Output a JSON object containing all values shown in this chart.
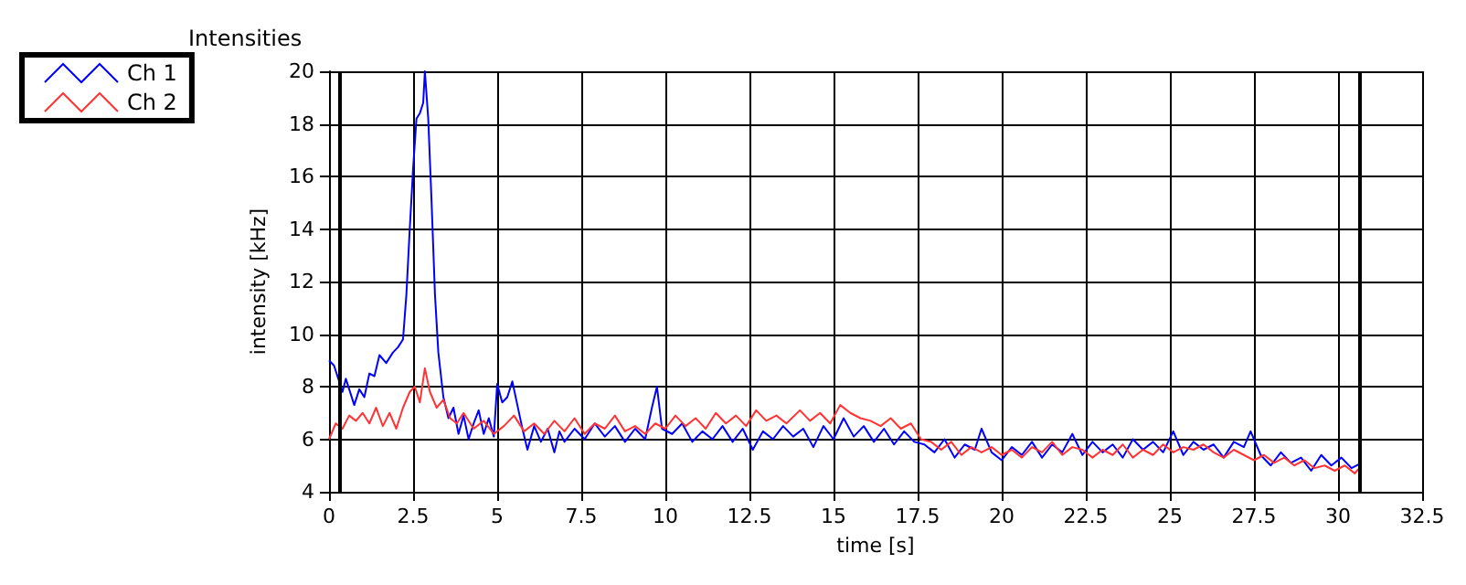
{
  "chart_data": {
    "type": "line",
    "title": "Intensities",
    "xlabel": "time [s]",
    "ylabel": "intensity [kHz]",
    "xlim": [
      0,
      32.5
    ],
    "xticks": [
      0,
      2.5,
      5,
      7.5,
      10,
      12.5,
      15,
      17.5,
      20,
      22.5,
      25,
      27.5,
      30,
      32.5
    ],
    "ylim": [
      4,
      20
    ],
    "yticks": [
      4,
      6,
      8,
      10,
      12,
      14,
      16,
      18,
      20
    ],
    "grid": true,
    "legend": "top left",
    "marker": "none",
    "line_style": "solid",
    "ref_lines": [
      {
        "axis": "x",
        "value": 0.3,
        "color": "#000000"
      },
      {
        "axis": "x",
        "value": 30.65,
        "color": "#000000"
      }
    ],
    "series": [
      {
        "name": "Ch 1",
        "color": "#0000ff",
        "x": [
          0,
          0.15,
          0.3,
          0.4,
          0.5,
          0.6,
          0.75,
          0.9,
          1.05,
          1.2,
          1.35,
          1.5,
          1.7,
          1.9,
          2.05,
          2.2,
          2.3,
          2.4,
          2.5,
          2.6,
          2.7,
          2.8,
          2.85,
          2.95,
          3.05,
          3.15,
          3.25,
          3.4,
          3.55,
          3.7,
          3.85,
          4.0,
          4.15,
          4.3,
          4.45,
          4.6,
          4.75,
          4.9,
          5.0,
          5.15,
          5.3,
          5.45,
          5.6,
          5.75,
          5.9,
          6.1,
          6.3,
          6.5,
          6.7,
          6.85,
          7.0,
          7.3,
          7.6,
          7.9,
          8.2,
          8.5,
          8.8,
          9.1,
          9.4,
          9.6,
          9.75,
          9.9,
          10.2,
          10.5,
          10.8,
          11.1,
          11.4,
          11.7,
          12.0,
          12.3,
          12.6,
          12.9,
          13.2,
          13.5,
          13.8,
          14.1,
          14.4,
          14.7,
          15.0,
          15.3,
          15.6,
          15.9,
          16.2,
          16.5,
          16.8,
          17.1,
          17.4,
          17.7,
          18.0,
          18.3,
          18.6,
          18.9,
          19.2,
          19.4,
          19.7,
          20.0,
          20.3,
          20.6,
          20.9,
          21.2,
          21.5,
          21.8,
          22.1,
          22.4,
          22.7,
          23.0,
          23.3,
          23.6,
          23.9,
          24.2,
          24.5,
          24.8,
          25.1,
          25.4,
          25.7,
          26.0,
          26.3,
          26.6,
          26.9,
          27.2,
          27.4,
          27.7,
          28.0,
          28.3,
          28.6,
          28.9,
          29.2,
          29.5,
          29.8,
          30.1,
          30.4,
          30.7
        ],
        "values": [
          9.0,
          8.8,
          8.2,
          7.8,
          8.3,
          7.9,
          7.3,
          7.9,
          7.6,
          8.5,
          8.4,
          9.2,
          8.9,
          9.3,
          9.5,
          9.8,
          11.5,
          14,
          16.3,
          18.2,
          18.4,
          18.8,
          20,
          18.2,
          15,
          11.5,
          9.3,
          7.6,
          6.8,
          7.2,
          6.2,
          6.9,
          6.0,
          6.6,
          7.1,
          6.2,
          6.8,
          6.1,
          8.1,
          7.4,
          7.6,
          8.2,
          7.3,
          6.4,
          5.6,
          6.5,
          5.9,
          6.4,
          5.5,
          6.3,
          5.9,
          6.4,
          6.0,
          6.6,
          6.1,
          6.5,
          5.9,
          6.4,
          6.0,
          7.2,
          8.0,
          6.4,
          6.2,
          6.6,
          5.9,
          6.3,
          6.0,
          6.5,
          5.9,
          6.4,
          5.6,
          6.3,
          6.0,
          6.5,
          6.1,
          6.4,
          5.7,
          6.5,
          6.0,
          6.8,
          6.1,
          6.5,
          5.9,
          6.4,
          5.8,
          6.3,
          5.9,
          5.8,
          5.5,
          6.0,
          5.3,
          5.8,
          5.6,
          6.4,
          5.5,
          5.2,
          5.7,
          5.4,
          5.9,
          5.3,
          5.8,
          5.5,
          6.2,
          5.4,
          5.9,
          5.5,
          5.8,
          5.3,
          6.0,
          5.6,
          5.9,
          5.5,
          6.3,
          5.4,
          5.9,
          5.6,
          5.8,
          5.3,
          5.9,
          5.7,
          6.3,
          5.4,
          5.0,
          5.5,
          5.1,
          5.3,
          4.8,
          5.4,
          5.0,
          5.3,
          4.9,
          5.1
        ]
      },
      {
        "name": "Ch 2",
        "color": "#ff3333",
        "x": [
          0,
          0.2,
          0.4,
          0.6,
          0.8,
          1.0,
          1.2,
          1.4,
          1.6,
          1.8,
          2.0,
          2.2,
          2.4,
          2.55,
          2.7,
          2.85,
          3.0,
          3.2,
          3.4,
          3.6,
          3.8,
          4.0,
          4.3,
          4.6,
          4.9,
          5.2,
          5.5,
          5.8,
          6.1,
          6.4,
          6.7,
          7.0,
          7.3,
          7.6,
          7.9,
          8.2,
          8.5,
          8.8,
          9.1,
          9.4,
          9.7,
          10.0,
          10.3,
          10.6,
          10.9,
          11.2,
          11.5,
          11.8,
          12.1,
          12.4,
          12.7,
          13.0,
          13.3,
          13.6,
          14.0,
          14.3,
          14.6,
          14.9,
          15.2,
          15.5,
          15.8,
          16.1,
          16.4,
          16.7,
          17.0,
          17.3,
          17.6,
          17.9,
          18.2,
          18.5,
          18.8,
          19.1,
          19.4,
          19.7,
          20.0,
          20.3,
          20.6,
          20.9,
          21.2,
          21.5,
          21.8,
          22.1,
          22.4,
          22.7,
          23.0,
          23.3,
          23.6,
          23.9,
          24.2,
          24.5,
          24.8,
          25.1,
          25.4,
          25.7,
          26.0,
          26.3,
          26.6,
          26.9,
          27.2,
          27.5,
          27.8,
          28.1,
          28.4,
          28.7,
          29.0,
          29.3,
          29.6,
          29.9,
          30.2,
          30.5,
          30.7
        ],
        "values": [
          6.0,
          6.6,
          6.4,
          6.9,
          6.7,
          7.0,
          6.6,
          7.2,
          6.5,
          7.0,
          6.4,
          7.2,
          7.8,
          8.0,
          7.4,
          8.7,
          7.8,
          7.2,
          7.5,
          6.8,
          6.6,
          7.0,
          6.4,
          6.7,
          6.2,
          6.5,
          6.9,
          6.3,
          6.6,
          6.2,
          6.7,
          6.3,
          6.8,
          6.2,
          6.6,
          6.4,
          6.9,
          6.3,
          6.5,
          6.2,
          6.6,
          6.4,
          6.9,
          6.5,
          6.8,
          6.4,
          7.0,
          6.6,
          6.9,
          6.5,
          7.1,
          6.7,
          6.9,
          6.6,
          7.1,
          6.7,
          7.0,
          6.6,
          7.3,
          7.0,
          6.8,
          6.7,
          6.5,
          6.8,
          6.4,
          6.6,
          6.0,
          5.9,
          5.6,
          5.9,
          5.4,
          5.7,
          5.5,
          5.7,
          5.4,
          5.6,
          5.3,
          5.7,
          5.5,
          5.9,
          5.4,
          5.7,
          5.6,
          5.3,
          5.6,
          5.4,
          5.8,
          5.3,
          5.6,
          5.4,
          5.8,
          5.5,
          5.7,
          5.6,
          5.8,
          5.5,
          5.3,
          5.6,
          5.4,
          5.2,
          5.4,
          5.1,
          5.3,
          5.0,
          5.2,
          4.9,
          5.0,
          4.8,
          5.0,
          4.7,
          5.0
        ]
      }
    ]
  }
}
